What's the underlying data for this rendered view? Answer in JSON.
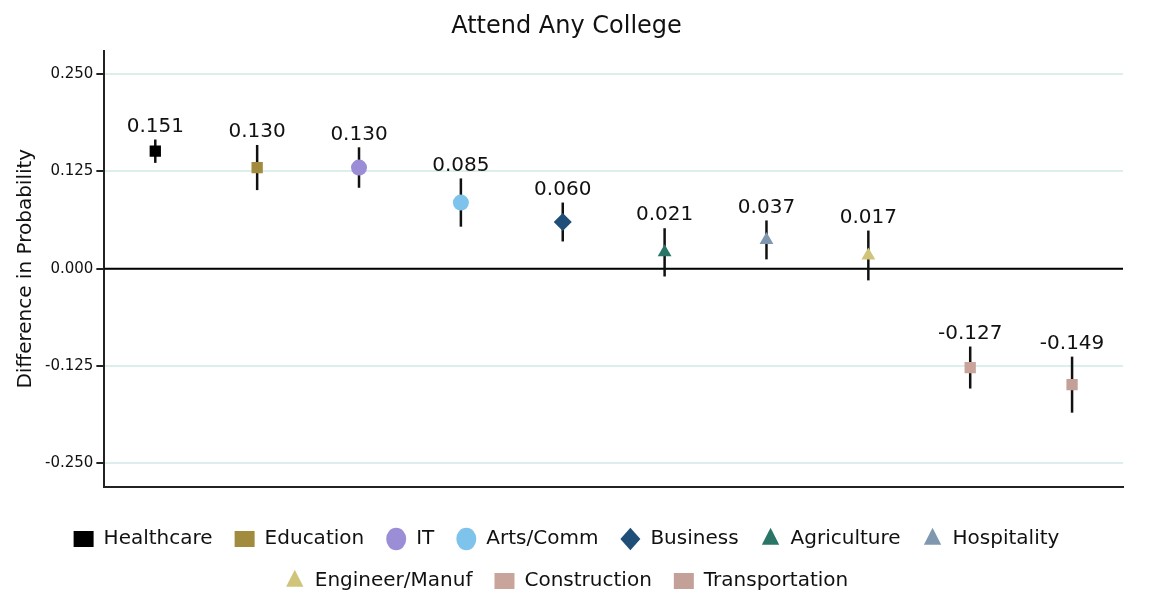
{
  "chart_data": {
    "type": "scatter",
    "title": "Attend Any College",
    "ylabel": "Difference in Probability",
    "categories": [
      null,
      null,
      null,
      null,
      null,
      null,
      null,
      null,
      null,
      null
    ],
    "ylim": [
      -0.28,
      0.28
    ],
    "yticks": [
      {
        "value": -0.25,
        "label": "-0.250"
      },
      {
        "value": -0.125,
        "label": "-0.125"
      },
      {
        "value": 0,
        "label": "0.000"
      },
      {
        "value": 0.125,
        "label": "0.125"
      },
      {
        "value": 0.25,
        "label": "0.250"
      }
    ],
    "grid": "y",
    "legend": "bottom",
    "ref_lines": [
      {
        "axis": "y",
        "value": 0,
        "color": "#000000"
      }
    ],
    "series": [
      {
        "name": "Healthcare",
        "color": "#000000",
        "marker": "square",
        "values": [
          0.151,
          null,
          null,
          null,
          null,
          null,
          null,
          null,
          null,
          null
        ],
        "errors": [
          0.015,
          null,
          null,
          null,
          null,
          null,
          null,
          null,
          null,
          null
        ],
        "value_labels": [
          "0.151",
          null,
          null,
          null,
          null,
          null,
          null,
          null,
          null,
          null
        ]
      },
      {
        "name": "Education",
        "color": "#a08c3c",
        "marker": "square",
        "values": [
          null,
          0.13,
          null,
          null,
          null,
          null,
          null,
          null,
          null,
          null
        ],
        "errors": [
          null,
          0.029,
          null,
          null,
          null,
          null,
          null,
          null,
          null,
          null
        ],
        "value_labels": [
          null,
          "0.130",
          null,
          null,
          null,
          null,
          null,
          null,
          null,
          null
        ]
      },
      {
        "name": "IT",
        "color": "#9b8ed6",
        "marker": "circle",
        "values": [
          null,
          null,
          0.13,
          null,
          null,
          null,
          null,
          null,
          null,
          null
        ],
        "errors": [
          null,
          null,
          0.026,
          null,
          null,
          null,
          null,
          null,
          null,
          null
        ],
        "value_labels": [
          null,
          null,
          "0.130",
          null,
          null,
          null,
          null,
          null,
          null,
          null
        ]
      },
      {
        "name": "Arts/Comm",
        "color": "#7ec3ec",
        "marker": "circle",
        "values": [
          null,
          null,
          null,
          0.085,
          null,
          null,
          null,
          null,
          null,
          null
        ],
        "errors": [
          null,
          null,
          null,
          0.031,
          null,
          null,
          null,
          null,
          null,
          null
        ],
        "value_labels": [
          null,
          null,
          null,
          "0.085",
          null,
          null,
          null,
          null,
          null,
          null
        ]
      },
      {
        "name": "Business",
        "color": "#1f4e79",
        "marker": "diamond",
        "values": [
          null,
          null,
          null,
          null,
          0.06,
          null,
          null,
          null,
          null,
          null
        ],
        "errors": [
          null,
          null,
          null,
          null,
          0.025,
          null,
          null,
          null,
          null,
          null
        ],
        "value_labels": [
          null,
          null,
          null,
          null,
          "0.060",
          null,
          null,
          null,
          null,
          null
        ]
      },
      {
        "name": "Agriculture",
        "color": "#2a7566",
        "marker": "triangle",
        "values": [
          null,
          null,
          null,
          null,
          null,
          0.021,
          null,
          null,
          null,
          null
        ],
        "errors": [
          null,
          null,
          null,
          null,
          null,
          0.031,
          null,
          null,
          null,
          null
        ],
        "value_labels": [
          null,
          null,
          null,
          null,
          null,
          "0.021",
          null,
          null,
          null,
          null
        ]
      },
      {
        "name": "Hospitality",
        "color": "#7f98b0",
        "marker": "triangle",
        "values": [
          null,
          null,
          null,
          null,
          null,
          null,
          0.037,
          null,
          null,
          null
        ],
        "errors": [
          null,
          null,
          null,
          null,
          null,
          null,
          0.025,
          null,
          null,
          null
        ],
        "value_labels": [
          null,
          null,
          null,
          null,
          null,
          null,
          "0.037",
          null,
          null,
          null
        ]
      },
      {
        "name": "Engineer/Manuf",
        "color": "#cfc47a",
        "marker": "triangle",
        "values": [
          null,
          null,
          null,
          null,
          null,
          null,
          null,
          0.017,
          null,
          null
        ],
        "errors": [
          null,
          null,
          null,
          null,
          null,
          null,
          null,
          0.032,
          null,
          null
        ],
        "value_labels": [
          null,
          null,
          null,
          null,
          null,
          null,
          null,
          "0.017",
          null,
          null
        ]
      },
      {
        "name": "Construction",
        "color": "#c9a49a",
        "marker": "square",
        "values": [
          null,
          null,
          null,
          null,
          null,
          null,
          null,
          null,
          -0.127,
          null
        ],
        "errors": [
          null,
          null,
          null,
          null,
          null,
          null,
          null,
          null,
          0.027,
          null
        ],
        "value_labels": [
          null,
          null,
          null,
          null,
          null,
          null,
          null,
          null,
          "-0.127",
          null
        ]
      },
      {
        "name": "Transportation",
        "color": "#c4a198",
        "marker": "square",
        "values": [
          null,
          null,
          null,
          null,
          null,
          null,
          null,
          null,
          null,
          -0.149
        ],
        "errors": [
          null,
          null,
          null,
          null,
          null,
          null,
          null,
          null,
          null,
          0.036
        ],
        "value_labels": [
          null,
          null,
          null,
          null,
          null,
          null,
          null,
          null,
          null,
          "-0.149"
        ]
      }
    ]
  }
}
